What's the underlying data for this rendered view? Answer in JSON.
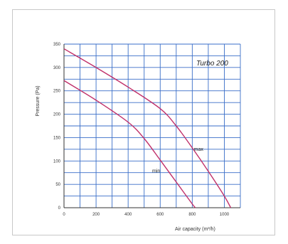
{
  "chart_data": {
    "type": "line",
    "title": "Turbo 200",
    "xlabel": "Air capacity (m³/h)",
    "ylabel": "Pressure (Pa)",
    "xlim": [
      0,
      1100
    ],
    "ylim": [
      0,
      350
    ],
    "xticks": [
      0,
      200,
      400,
      600,
      800,
      1000
    ],
    "yticks": [
      0,
      50,
      100,
      150,
      200,
      250,
      300,
      350
    ],
    "grid": true,
    "colors": {
      "grid": "#3a6ec8",
      "curve": "#c0306a",
      "axis": "#333333"
    },
    "series": [
      {
        "name": "max",
        "x": [
          0,
          200,
          400,
          600,
          700,
          800,
          900,
          1000,
          1040
        ],
        "y": [
          340,
          300,
          258,
          212,
          175,
          128,
          78,
          25,
          0
        ]
      },
      {
        "name": "min",
        "x": [
          0,
          200,
          400,
          500,
          600,
          700,
          800,
          820
        ],
        "y": [
          272,
          230,
          183,
          148,
          102,
          55,
          8,
          0
        ]
      }
    ]
  }
}
